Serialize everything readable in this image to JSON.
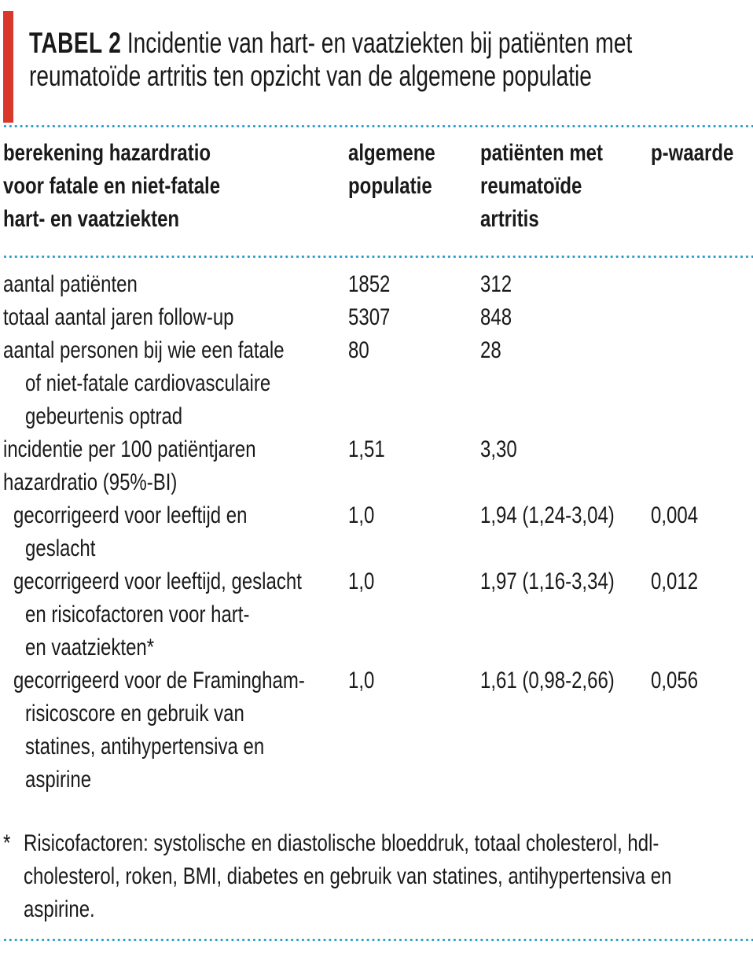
{
  "accent_colors": {
    "red_bar": "#d9392b",
    "dotted_line": "#2b9cc7",
    "text": "#1a1a1a"
  },
  "title": {
    "label": "TABEL 2",
    "line1_rest": "Incidentie van hart- en vaatziekten bij patiënten met",
    "line2": "reumatoïde artritis ten opzicht van de algemene populatie"
  },
  "table": {
    "header": {
      "col1_lines": [
        "berekening hazardratio",
        "voor fatale en niet-fatale",
        "hart- en vaatziekten"
      ],
      "col2_lines": [
        "algemene",
        "populatie"
      ],
      "col3_lines": [
        "patiënten met",
        "reumatoïde",
        "artritis"
      ],
      "col4_lines": [
        "p-waarde"
      ]
    },
    "rows": [
      {
        "label_lines": [
          "aantal patiënten"
        ],
        "algemene_populatie": "1852",
        "reumatoide_artritis": "312",
        "p_waarde": ""
      },
      {
        "label_lines": [
          "totaal aantal jaren follow-up"
        ],
        "algemene_populatie": "5307",
        "reumatoide_artritis": "848",
        "p_waarde": ""
      },
      {
        "label_lines": [
          "aantal personen bij wie een fatale",
          "of niet-fatale cardiovasculaire",
          "gebeurtenis optrad"
        ],
        "algemene_populatie": "80",
        "reumatoide_artritis": "28",
        "p_waarde": ""
      },
      {
        "label_lines": [
          "incidentie per 100 patiëntjaren"
        ],
        "algemene_populatie": "1,51",
        "reumatoide_artritis": "3,30",
        "p_waarde": ""
      },
      {
        "label_lines": [
          "hazardratio (95%-BI)"
        ],
        "algemene_populatie": "",
        "reumatoide_artritis": "",
        "p_waarde": ""
      },
      {
        "label_lines": [
          "gecorrigeerd voor leeftijd en",
          "geslacht"
        ],
        "algemene_populatie": "1,0",
        "reumatoide_artritis": "1,94 (1,24-3,04)",
        "p_waarde": "0,004"
      },
      {
        "label_lines": [
          "gecorrigeerd voor leeftijd, geslacht",
          "en risicofactoren voor hart-",
          "en vaatziekten*"
        ],
        "algemene_populatie": "1,0",
        "reumatoide_artritis": "1,97 (1,16-3,34)",
        "p_waarde": "0,012"
      },
      {
        "label_lines": [
          "gecorrigeerd voor de Framingham-",
          "risicoscore en gebruik van",
          "statines, antihypertensiva en",
          "aspirine"
        ],
        "algemene_populatie": "1,0",
        "reumatoide_artritis": "1,61 (0,98-2,66)",
        "p_waarde": "0,056"
      }
    ]
  },
  "footnote": {
    "marker": "*",
    "lines": [
      "Risicofactoren: systolische en diastolische bloeddruk, totaal cholesterol, hdl-",
      "cholesterol, roken, BMI, diabetes en gebruik van statines, antihypertensiva en",
      "aspirine."
    ]
  }
}
